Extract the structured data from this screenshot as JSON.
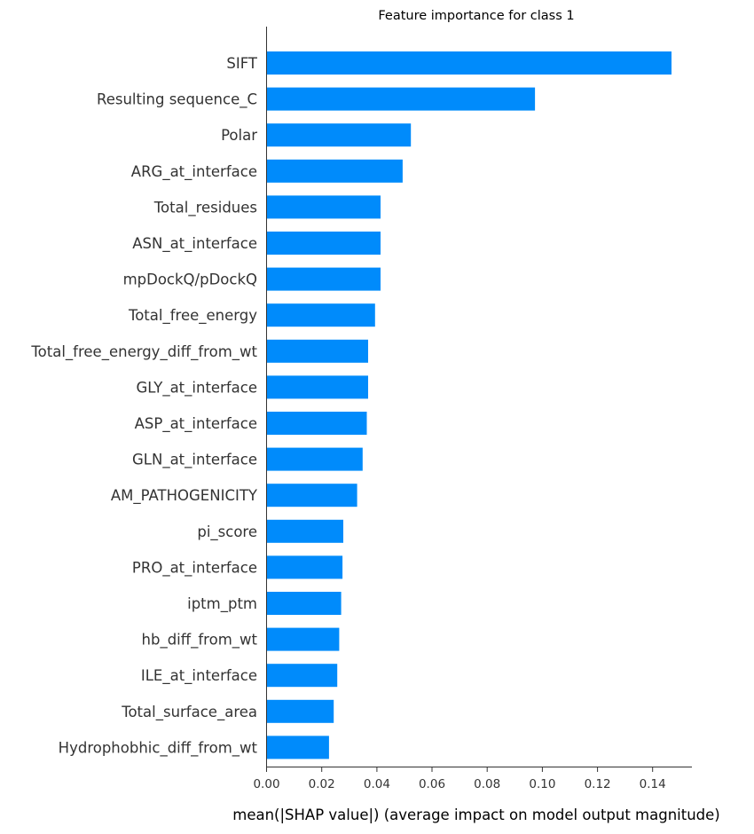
{
  "chart_data": {
    "type": "bar",
    "orientation": "horizontal",
    "title": "Feature importance for class 1",
    "xlabel": "mean(|SHAP value|) (average impact on model output magnitude)",
    "ylabel": "",
    "xlim": [
      0,
      0.155
    ],
    "xticks": [
      "0.00",
      "0.02",
      "0.04",
      "0.06",
      "0.08",
      "0.10",
      "0.12",
      "0.14"
    ],
    "bar_color": "#008bfb",
    "categories": [
      "SIFT",
      "Resulting sequence_C",
      "Polar",
      "ARG_at_interface",
      "Total_residues",
      "ASN_at_interface",
      "mpDockQ/pDockQ",
      "Total_free_energy",
      "Total_free_energy_diff_from_wt",
      "GLY_at_interface",
      "ASP_at_interface",
      "GLN_at_interface",
      "AM_PATHOGENICITY",
      "pi_score",
      "PRO_at_interface",
      "iptm_ptm",
      "hb_diff_from_wt",
      "ILE_at_interface",
      "Total_surface_area",
      "Hydrophobhic_diff_from_wt"
    ],
    "values": [
      0.147,
      0.0975,
      0.0525,
      0.0495,
      0.0415,
      0.0415,
      0.0415,
      0.0395,
      0.037,
      0.037,
      0.0365,
      0.035,
      0.033,
      0.028,
      0.0277,
      0.0272,
      0.0265,
      0.0258,
      0.0245,
      0.0228
    ]
  }
}
